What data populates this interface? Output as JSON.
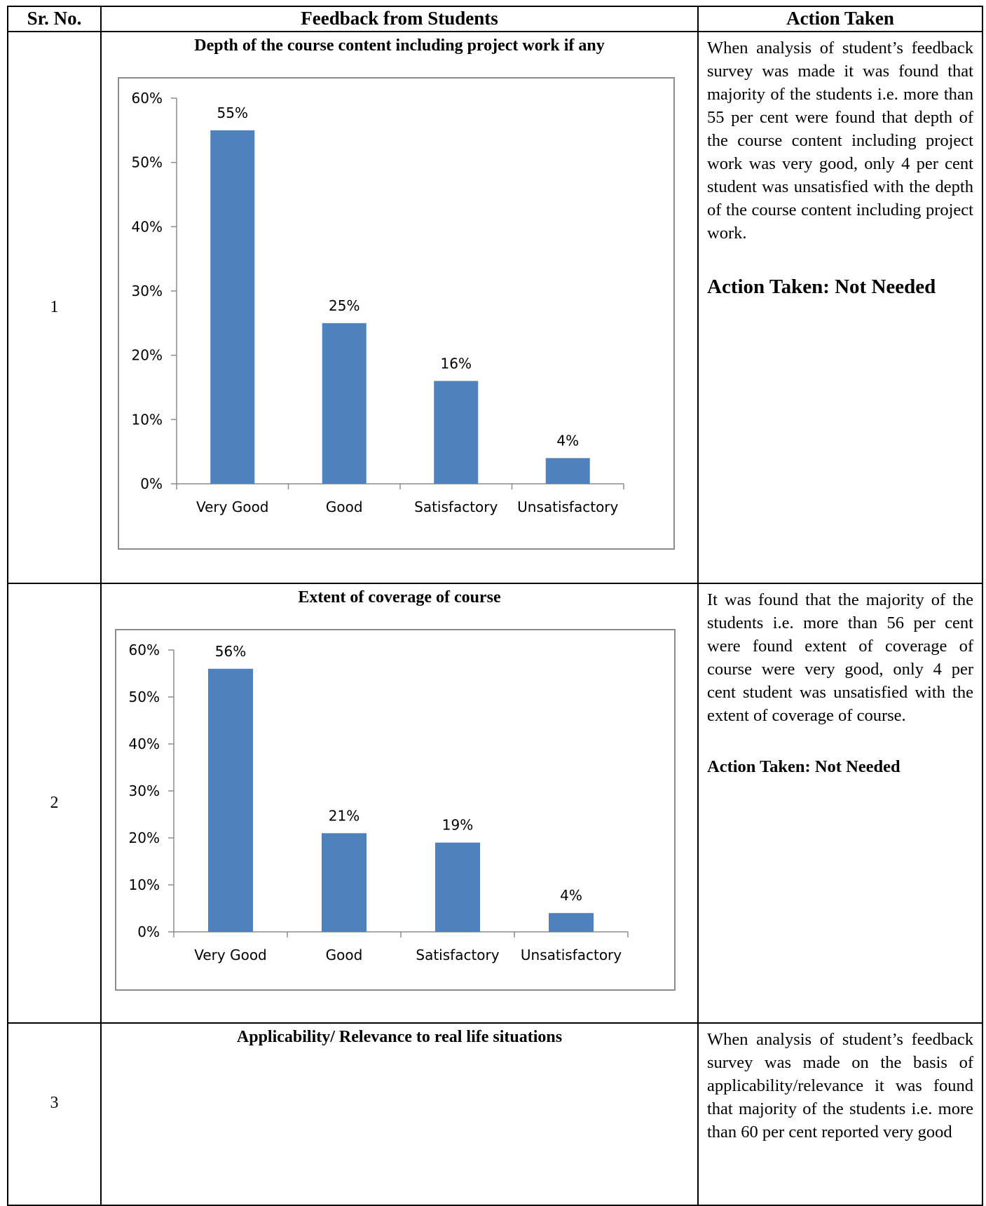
{
  "headers": {
    "sr_no": "Sr. No.",
    "feedback": "Feedback from Students",
    "action": "Action Taken"
  },
  "rows": [
    {
      "sr": "1",
      "title": "Depth of the course content including project work if any",
      "action_text": "When analysis of student’s feedback survey was made it was found that majority of the students i.e. more than 55 per cent were found that depth of the course content including project work was very good, only 4 per cent student was unsatisfied with the depth of the course content including project work.",
      "action_taken": "Action Taken: Not Needed"
    },
    {
      "sr": "2",
      "title": "Extent of coverage of course",
      "action_text": "It was found that the majority of the students i.e. more than 56 per cent were found extent of coverage of course were very good, only 4 per cent student was unsatisfied with the extent of coverage of course.",
      "action_taken": "Action Taken: Not Needed"
    },
    {
      "sr": "3",
      "title": "Applicability/ Relevance to real life situations",
      "action_text": "When analysis of student’s feedback survey was made on the basis of applicability/relevance it was found that majority of the students i.e. more than 60 per cent reported very good"
    }
  ],
  "chart_data": [
    {
      "type": "bar",
      "categories": [
        "Very Good",
        "Good",
        "Satisfactory",
        "Unsatisfactory"
      ],
      "values": [
        55,
        25,
        16,
        4
      ],
      "data_labels": [
        "55%",
        "25%",
        "16%",
        "4%"
      ],
      "yticks": [
        "0%",
        "10%",
        "20%",
        "30%",
        "40%",
        "50%",
        "60%"
      ],
      "ylim": [
        0,
        60
      ],
      "grid": false,
      "legend": "none",
      "bar_color": "#4f81bd"
    },
    {
      "type": "bar",
      "categories": [
        "Very Good",
        "Good",
        "Satisfactory",
        "Unsatisfactory"
      ],
      "values": [
        56,
        21,
        19,
        4
      ],
      "data_labels": [
        "56%",
        "21%",
        "19%",
        "4%"
      ],
      "yticks": [
        "0%",
        "10%",
        "20%",
        "30%",
        "40%",
        "50%",
        "60%"
      ],
      "ylim": [
        0,
        60
      ],
      "grid": false,
      "legend": "none",
      "bar_color": "#4f81bd"
    }
  ]
}
